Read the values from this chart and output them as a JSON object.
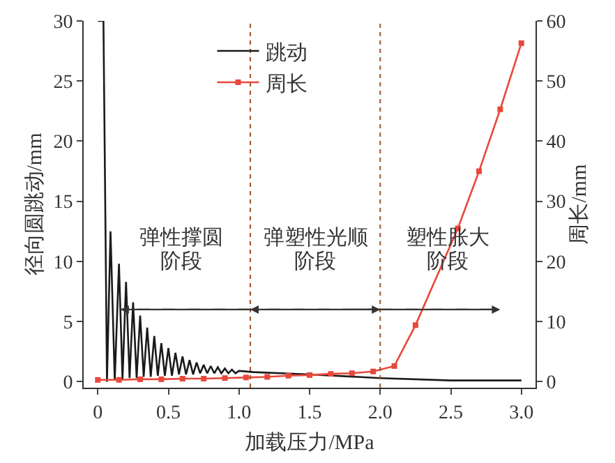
{
  "chart_data": {
    "type": "line",
    "xlabel": "加载压力/MPa",
    "ylabel": "径向圆跳动/mm",
    "y2label": "周长/mm",
    "xlim": [
      -0.1,
      3.1
    ],
    "xticks": [
      {
        "value": 0,
        "label": "0"
      },
      0.5,
      {
        "value": 1,
        "label": "1.0"
      },
      1.5,
      {
        "value": 2,
        "label": "2.0"
      },
      2.5,
      {
        "value": 3,
        "label": "3.0"
      }
    ],
    "ylim": [
      -0.5,
      30
    ],
    "yticks": [
      0,
      5,
      10,
      15,
      20,
      25,
      30
    ],
    "y2lim": [
      -1,
      60
    ],
    "y2ticks": [
      0,
      10,
      20,
      30,
      40,
      50,
      60
    ],
    "series": [
      {
        "name": "跳动",
        "color": "#1a1a1a",
        "marker": "none",
        "x": [
          0,
          0.04,
          0.065,
          0.09,
          0.12,
          0.15,
          0.175,
          0.2,
          0.225,
          0.25,
          0.275,
          0.3,
          0.325,
          0.35,
          0.375,
          0.4,
          0.425,
          0.45,
          0.475,
          0.5,
          0.525,
          0.55,
          0.575,
          0.6,
          0.625,
          0.65,
          0.675,
          0.7,
          0.725,
          0.75,
          0.775,
          0.8,
          0.825,
          0.85,
          0.875,
          0.9,
          0.925,
          0.95,
          0.975,
          1.0,
          1.1,
          1.5,
          2.0,
          2.5,
          3.0
        ],
        "values": [
          30,
          30,
          0,
          12.5,
          0.1,
          9.8,
          0.2,
          8.3,
          0.3,
          6.6,
          0.3,
          5.5,
          0.4,
          4.5,
          0.4,
          3.8,
          0.5,
          3.2,
          0.5,
          2.8,
          0.5,
          2.4,
          0.6,
          2.1,
          0.6,
          1.8,
          0.6,
          1.6,
          0.7,
          1.4,
          0.7,
          1.3,
          0.7,
          1.2,
          0.7,
          1.1,
          0.7,
          1.0,
          0.7,
          0.9,
          0.8,
          0.6,
          0.3,
          0.1,
          0.1
        ]
      },
      {
        "name": "周长",
        "color": "#e8483a",
        "marker": "square",
        "axis": "y2",
        "x": [
          0,
          0.15,
          0.3,
          0.45,
          0.6,
          0.75,
          0.9,
          1.05,
          1.2,
          1.35,
          1.5,
          1.65,
          1.8,
          1.95,
          2.1,
          2.25,
          2.55,
          2.7,
          2.85,
          3.0
        ],
        "values": [
          0.3,
          0.3,
          0.4,
          0.4,
          0.5,
          0.5,
          0.6,
          0.7,
          0.8,
          1.0,
          1.1,
          1.3,
          1.4,
          1.7,
          2.6,
          9.4,
          25.5,
          35,
          45.3,
          56.3
        ]
      }
    ],
    "ref_lines": [
      {
        "axis": "x",
        "value": 1.08,
        "color": "#a0522d",
        "line_style": "dotted"
      },
      {
        "axis": "x",
        "value": 2.0,
        "color": "#a0522d",
        "line_style": "dotted"
      }
    ],
    "annotations": [
      "弹性撑圆",
      "阶段",
      "弹塑性光顺",
      "阶段",
      "塑性胀大",
      "阶段"
    ],
    "grid": false,
    "legend": "top",
    "line_style": "solid"
  }
}
